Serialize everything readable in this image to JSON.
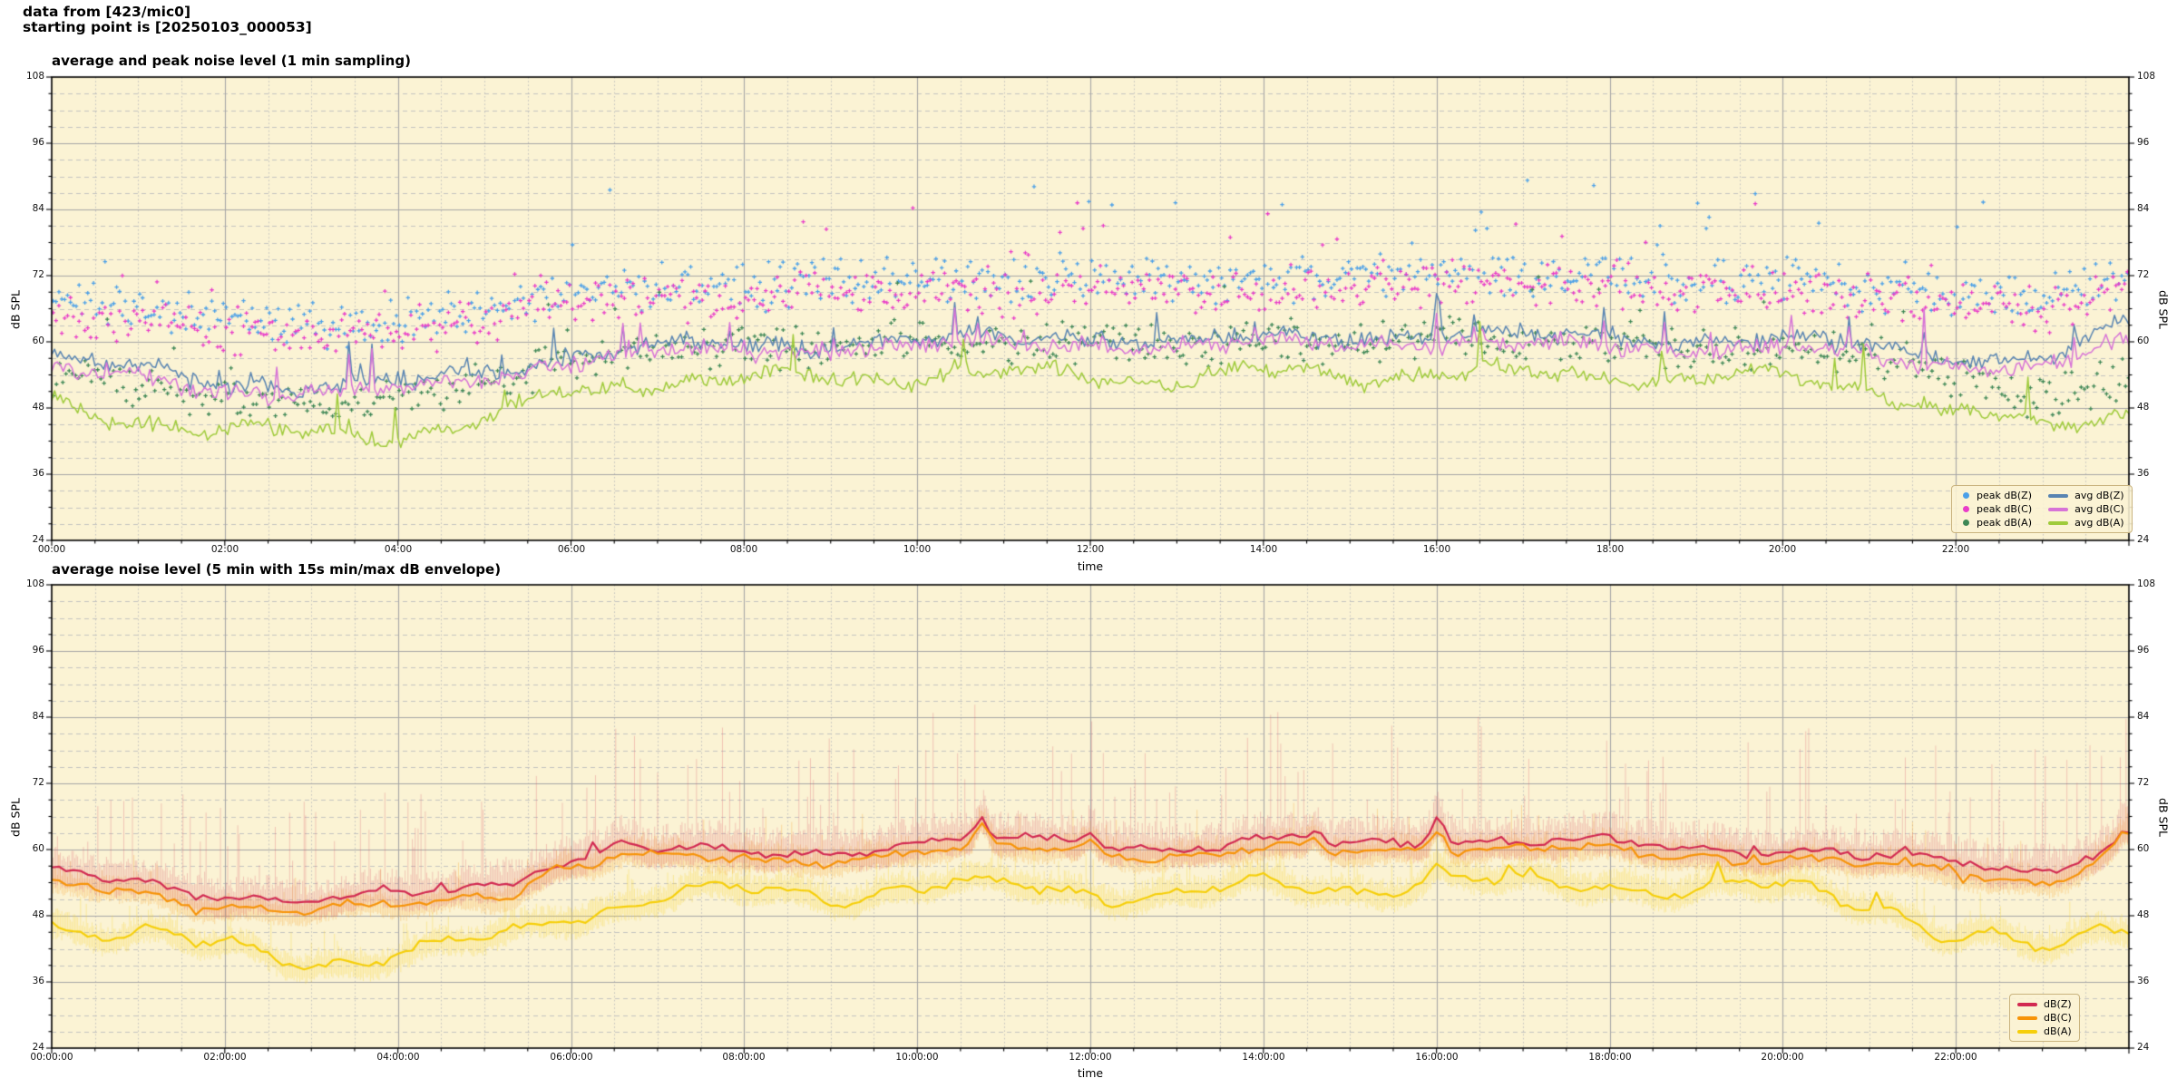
{
  "header": {
    "line1": "data from [423/mic0]",
    "line2": "starting point is [20250103_000053]"
  },
  "figure": {
    "background": "#ffffff"
  },
  "chart_data": [
    {
      "type": "line",
      "title": "average and peak noise level (1 min sampling)",
      "xlabel": "time",
      "ylabel": "dB SPL",
      "ylim": [
        24,
        108
      ],
      "yticks": [
        24,
        36,
        48,
        60,
        72,
        84,
        96,
        108
      ],
      "y_minor_step": 3,
      "xlim_hours": [
        0,
        24
      ],
      "xticks": {
        "hours": [
          0,
          2,
          4,
          6,
          8,
          10,
          12,
          14,
          16,
          18,
          20,
          22
        ],
        "labels": [
          "00:00",
          "02:00",
          "04:00",
          "06:00",
          "08:00",
          "10:00",
          "12:00",
          "14:00",
          "16:00",
          "18:00",
          "20:00",
          "22:00"
        ]
      },
      "x_minor_step_hours": 0.5,
      "plot_background": "#fbf3d4",
      "grid": {
        "major": "#a6a6a6",
        "minor": "#bdbdbd"
      },
      "legend_location": "lower right",
      "line_step_min": 2,
      "shared_seed": 101,
      "shared_amp": 1.1,
      "spike_seed": 102,
      "shared_spike_p": 0.012,
      "shared_spike_max": 7,
      "series": [
        {
          "name": "peak dB(Z)",
          "kind": "scatter",
          "color": "#4ba0e8",
          "step_min": 2,
          "seed": 21,
          "hourly": [
            68,
            66,
            64,
            63,
            64,
            66,
            69,
            70,
            70,
            71,
            71,
            71,
            72,
            71,
            71,
            72,
            73,
            72,
            72,
            71,
            71,
            70,
            69,
            68,
            71
          ],
          "spread": 5,
          "out_p": 0.04,
          "out_max": 17
        },
        {
          "name": "peak dB(C)",
          "kind": "scatter",
          "color": "#e93cc9",
          "step_min": 2,
          "seed": 22,
          "hourly": [
            66,
            64,
            62,
            61,
            62,
            64,
            67,
            68,
            68,
            69,
            69,
            69,
            70,
            69,
            69,
            70,
            71,
            70,
            70,
            69,
            69,
            68,
            67,
            66,
            69
          ],
          "spread": 5,
          "out_p": 0.035,
          "out_max": 14
        },
        {
          "name": "peak dB(A)",
          "kind": "scatter",
          "color": "#3d8755",
          "step_min": 2.2,
          "seed": 23,
          "hourly": [
            54,
            52,
            50,
            49,
            50,
            52,
            57,
            59,
            59,
            59,
            60,
            60,
            60,
            59,
            60,
            60,
            61,
            60,
            60,
            59,
            59,
            58,
            53,
            50,
            53
          ],
          "spread": 4.5,
          "out_p": 0.02,
          "out_max": 12
        },
        {
          "name": "avg dB(Z)",
          "kind": "line",
          "color": "#5884b2",
          "width": 1.5,
          "seed": 11,
          "hourly": [
            57,
            55,
            53,
            52,
            52.5,
            55,
            58,
            59,
            59.5,
            60,
            60,
            60.5,
            61,
            60,
            60.5,
            61,
            61.5,
            61,
            61,
            60.5,
            60,
            59,
            57.5,
            57,
            63
          ],
          "noise": 1.6,
          "shared_w": 0.9,
          "spike_share": 1.0,
          "spike_p": 0.006,
          "spike_max": 6,
          "bumps": [
            {
              "h": 16.02,
              "a": 7,
              "w": 0.05
            }
          ],
          "wander": {
            "a1": 0.8,
            "f1": 1.9,
            "p1": 0.3,
            "a2": 0.5,
            "f2": 5.3,
            "p2": 1.2
          }
        },
        {
          "name": "avg dB(C)",
          "kind": "line",
          "color": "#d773d7",
          "width": 1.5,
          "seed": 12,
          "hourly": [
            55,
            53.5,
            51.5,
            50.5,
            51,
            53.5,
            57,
            58,
            58.5,
            59,
            59,
            59.5,
            60,
            59,
            59.5,
            60,
            60,
            59.5,
            59.5,
            59,
            58.5,
            57.5,
            56,
            55.5,
            60
          ],
          "noise": 1.6,
          "shared_w": 0.9,
          "spike_share": 0.95,
          "spike_p": 0.01,
          "spike_max": 7,
          "bumps": [],
          "wander": {
            "a1": 0.8,
            "f1": 1.9,
            "p1": 0.5,
            "a2": 0.5,
            "f2": 5.7,
            "p2": 2.2
          }
        },
        {
          "name": "avg dB(A)",
          "kind": "line",
          "color": "#9fcb3b",
          "width": 1.5,
          "seed": 13,
          "hourly": [
            48,
            46,
            44,
            43,
            43.5,
            45.5,
            51,
            53,
            53,
            53.5,
            54,
            54,
            54,
            53.5,
            54,
            54,
            54.5,
            54,
            54,
            53.5,
            53,
            52,
            47,
            44.5,
            47
          ],
          "noise": 1.5,
          "shared_w": 0.3,
          "spike_share": 0.3,
          "spike_p": 0.015,
          "spike_max": 8,
          "bumps": [],
          "wander": {
            "a1": 1.3,
            "f1": 2.2,
            "p1": 2.1,
            "a2": 0.8,
            "f2": 6.1,
            "p2": 0.4
          }
        }
      ],
      "legend_columns": [
        [
          0,
          1,
          2
        ],
        [
          3,
          4,
          5
        ]
      ]
    },
    {
      "type": "line",
      "title": "average noise level (5 min with 15s min/max dB envelope)",
      "xlabel": "time",
      "ylabel": "dB SPL",
      "ylim": [
        24,
        108
      ],
      "yticks": [
        24,
        36,
        48,
        60,
        72,
        84,
        96,
        108
      ],
      "y_minor_step": 3,
      "xlim_hours": [
        0,
        24
      ],
      "xticks": {
        "hours": [
          0,
          2,
          4,
          6,
          8,
          10,
          12,
          14,
          16,
          18,
          20,
          22
        ],
        "labels": [
          "00:00:00",
          "02:00:00",
          "04:00:00",
          "06:00:00",
          "08:00:00",
          "10:00:00",
          "12:00:00",
          "14:00:00",
          "16:00:00",
          "18:00:00",
          "20:00:00",
          "22:00:00"
        ]
      },
      "x_minor_step_hours": 0.5,
      "plot_background": "#fbf3d4",
      "grid": {
        "major": "#a6a6a6",
        "minor": "#bdbdbd"
      },
      "legend_location": "lower right",
      "line_step_min": 5,
      "shared_seed": 201,
      "shared_amp": 0.6,
      "spike_seed": 202,
      "shared_spike_p": 0.008,
      "shared_spike_max": 3,
      "series": [
        {
          "name": "dB(Z)",
          "kind": "line",
          "color": "#d22a52",
          "width": 2.2,
          "seed": 41,
          "hourly": [
            55.5,
            54,
            52,
            51,
            51.5,
            53.5,
            58.5,
            59.5,
            59.5,
            60,
            61,
            61.5,
            61.5,
            60.5,
            61,
            61,
            62,
            61.5,
            61,
            60.5,
            60,
            58.5,
            57.5,
            56.5,
            61.5
          ],
          "noise": 0.7,
          "shared_w": 1.0,
          "spike_share": 1.0,
          "spike_p": 0.01,
          "spike_max": 2.5,
          "bumps": [
            {
              "h": 6.6,
              "a": 2,
              "w": 0.2
            },
            {
              "h": 10.75,
              "a": 4.5,
              "w": 0.09
            },
            {
              "h": 12.0,
              "a": 2.5,
              "w": 0.1
            },
            {
              "h": 14.6,
              "a": 2.5,
              "w": 0.09
            },
            {
              "h": 16.02,
              "a": 5,
              "w": 0.1
            },
            {
              "h": 23.95,
              "a": 2.5,
              "w": 0.1
            }
          ],
          "wander": {
            "a1": 0.8,
            "f1": 1.8,
            "p1": 0.9,
            "a2": 0.5,
            "f2": 4.9,
            "p2": 2.0
          }
        },
        {
          "name": "dB(C)",
          "kind": "line",
          "color": "#f79409",
          "width": 2.2,
          "seed": 42,
          "hourly": [
            53.5,
            52,
            50,
            49,
            49.5,
            51.5,
            57,
            58,
            58,
            58.5,
            59.5,
            60,
            60,
            59,
            59.5,
            59.5,
            60.5,
            60,
            59.5,
            59,
            58.5,
            57,
            55.5,
            54.5,
            60.5
          ],
          "noise": 0.7,
          "shared_w": 1.0,
          "spike_share": 0.9,
          "spike_p": 0.01,
          "spike_max": 2,
          "bumps": [
            {
              "h": 6.6,
              "a": 1.7,
              "w": 0.2
            },
            {
              "h": 10.75,
              "a": 3.8,
              "w": 0.09
            },
            {
              "h": 12.0,
              "a": 2.1,
              "w": 0.1
            },
            {
              "h": 14.6,
              "a": 2.1,
              "w": 0.09
            },
            {
              "h": 16.02,
              "a": 4.5,
              "w": 0.1
            },
            {
              "h": 23.95,
              "a": 2.2,
              "w": 0.1
            }
          ],
          "wander": {
            "a1": 0.8,
            "f1": 1.8,
            "p1": 1.1,
            "a2": 0.5,
            "f2": 5.2,
            "p2": 2.4
          }
        },
        {
          "name": "dB(A)",
          "kind": "line",
          "color": "#f6cf0a",
          "width": 2.2,
          "seed": 43,
          "hourly": [
            47,
            45,
            41.5,
            40,
            41,
            43,
            48.5,
            51.5,
            52,
            52,
            53.5,
            53,
            52.5,
            52,
            53,
            53,
            54.5,
            53.5,
            54,
            53,
            52.5,
            51,
            44.5,
            41.5,
            47
          ],
          "noise": 0.9,
          "shared_w": 0.2,
          "spike_share": 0.2,
          "spike_p": 0.012,
          "spike_max": 3,
          "bumps": [
            {
              "h": 16.02,
              "a": 2,
              "w": 0.1
            }
          ],
          "wander": {
            "a1": 1.5,
            "f1": 2.1,
            "p1": 4.0,
            "a2": 0.9,
            "f2": 5.9,
            "p2": 1.1
          }
        }
      ],
      "envelopes": [
        {
          "series_index": 2,
          "color": "rgba(248,215,60,0.38)",
          "step_min": 1,
          "seed": 53,
          "drop_base": 1.5,
          "drop_var": 1.5,
          "tail_p": 0.06,
          "tail_base": 3.5,
          "tail_var": 5,
          "base": 1.2,
          "var": 2.2
        },
        {
          "series_index": 1,
          "color": "rgba(247,160,40,0.33)",
          "step_min": 1,
          "seed": 52,
          "drop_base": 1.5,
          "drop_var": 1.2,
          "tail_p": 0.05,
          "tail_base": 3,
          "tail_var": 5,
          "base": 1.2,
          "var": 2.2
        },
        {
          "series_index": 0,
          "color": "rgba(219,90,105,0.30)",
          "step_min": 1,
          "seed": 51,
          "drop_base": 2.0,
          "drop_var": 1.5,
          "tail_p": 0.1,
          "tail_base": 6,
          "tail_var": 17,
          "base": 1.5,
          "var": 3.5
        }
      ],
      "legend_columns": [
        [
          0,
          1,
          2
        ]
      ]
    }
  ]
}
